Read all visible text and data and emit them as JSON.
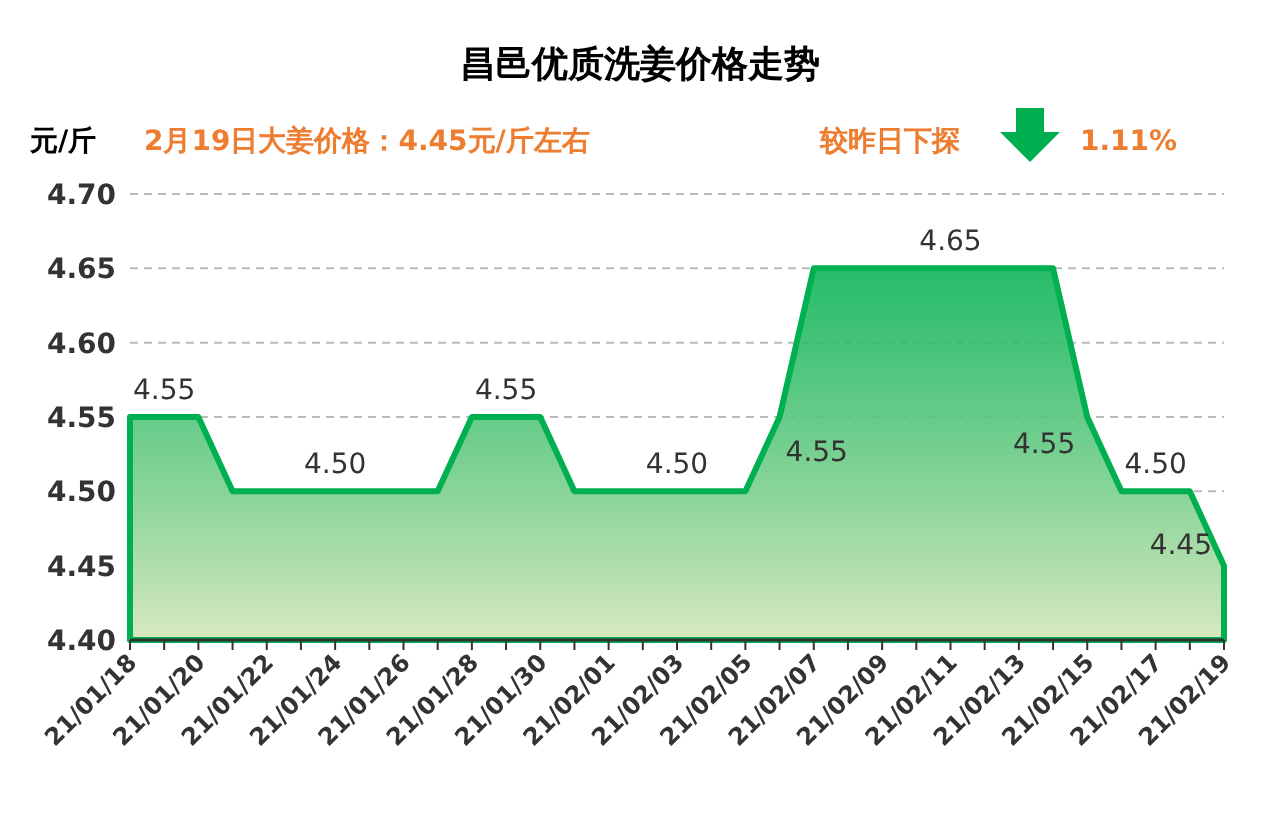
{
  "chart_data": {
    "type": "area",
    "title": "昌邑优质洗姜价格走势",
    "ylabel": "元/斤",
    "annotations": [
      "2月19日大姜价格：4.45元/斤左右",
      "较昨日下探",
      "1.11%"
    ],
    "categories": [
      "21/01/18",
      null,
      "21/01/20",
      null,
      "21/01/22",
      null,
      "21/01/24",
      null,
      "21/01/26",
      null,
      "21/01/28",
      null,
      "21/01/30",
      null,
      "21/02/01",
      null,
      "21/02/03",
      null,
      "21/02/05",
      null,
      "21/02/07",
      null,
      "21/02/09",
      null,
      "21/02/11",
      null,
      "21/02/13",
      null,
      "21/02/15",
      null,
      "21/02/17",
      null,
      "21/02/19"
    ],
    "values": [
      4.55,
      4.55,
      4.55,
      4.5,
      4.5,
      4.5,
      4.5,
      4.5,
      4.5,
      4.5,
      4.55,
      4.55,
      4.55,
      4.5,
      4.5,
      4.5,
      4.5,
      4.5,
      4.5,
      4.55,
      4.65,
      4.65,
      4.65,
      4.65,
      4.65,
      4.65,
      4.65,
      4.65,
      4.55,
      4.5,
      4.5,
      4.5,
      4.45
    ],
    "value_labels": [
      null,
      "4.55",
      null,
      null,
      null,
      null,
      "4.50",
      null,
      null,
      null,
      null,
      "4.55",
      null,
      null,
      null,
      null,
      "4.50",
      null,
      null,
      "4.55",
      null,
      null,
      null,
      null,
      "4.65",
      null,
      null,
      null,
      "4.55",
      null,
      "4.50",
      null,
      "4.45"
    ],
    "color": "#00b050",
    "ylim": [
      4.4,
      4.7
    ],
    "yticks": [
      {
        "value": 4.4,
        "label": "4.40"
      },
      4.45,
      {
        "value": 4.5,
        "label": "4.50"
      },
      4.55,
      {
        "value": 4.6,
        "label": "4.60"
      },
      4.65,
      {
        "value": 4.7,
        "label": "4.70"
      }
    ],
    "grid": "y"
  }
}
